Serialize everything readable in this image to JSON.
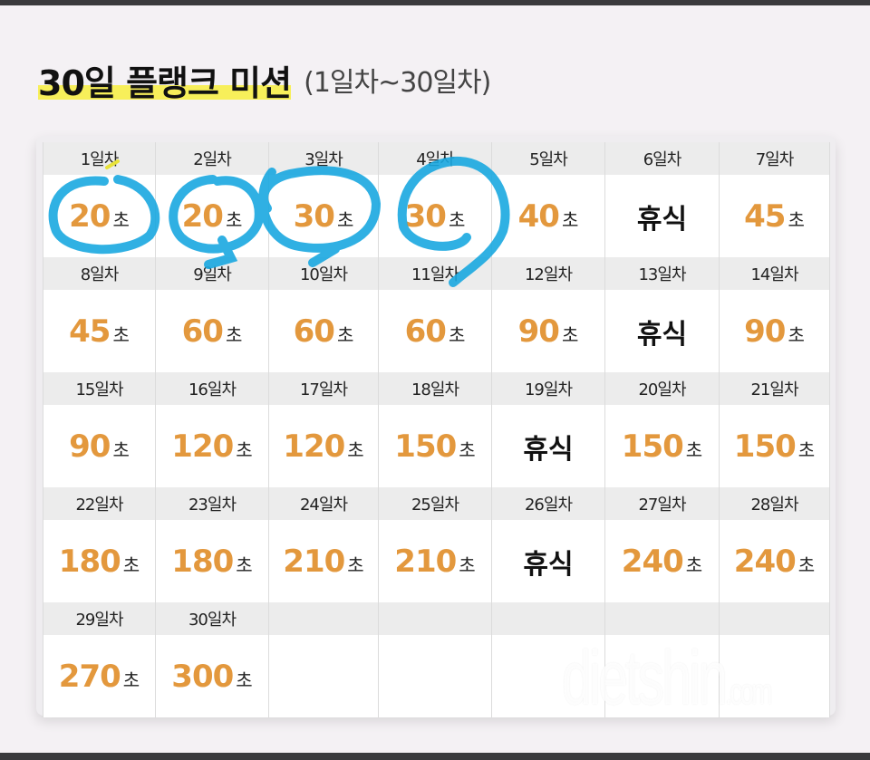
{
  "title": {
    "main": "30일 플랭크 미션",
    "sub": "(1일차~30일차)",
    "highlight_color": "#f7ef5a"
  },
  "colors": {
    "value": "#e3983d",
    "annotation": "#1aa8e0",
    "header_bg": "#ececec"
  },
  "unit": "초",
  "rest_label": "휴식",
  "days": [
    {
      "label": "1일차",
      "value": "20",
      "rest": false
    },
    {
      "label": "2일차",
      "value": "20",
      "rest": false
    },
    {
      "label": "3일차",
      "value": "30",
      "rest": false
    },
    {
      "label": "4일차",
      "value": "30",
      "rest": false
    },
    {
      "label": "5일차",
      "value": "40",
      "rest": false
    },
    {
      "label": "6일차",
      "value": "휴식",
      "rest": true
    },
    {
      "label": "7일차",
      "value": "45",
      "rest": false
    },
    {
      "label": "8일차",
      "value": "45",
      "rest": false
    },
    {
      "label": "9일차",
      "value": "60",
      "rest": false
    },
    {
      "label": "10일차",
      "value": "60",
      "rest": false
    },
    {
      "label": "11일차",
      "value": "60",
      "rest": false
    },
    {
      "label": "12일차",
      "value": "90",
      "rest": false
    },
    {
      "label": "13일차",
      "value": "휴식",
      "rest": true
    },
    {
      "label": "14일차",
      "value": "90",
      "rest": false
    },
    {
      "label": "15일차",
      "value": "90",
      "rest": false
    },
    {
      "label": "16일차",
      "value": "120",
      "rest": false
    },
    {
      "label": "17일차",
      "value": "120",
      "rest": false
    },
    {
      "label": "18일차",
      "value": "150",
      "rest": false
    },
    {
      "label": "19일차",
      "value": "휴식",
      "rest": true
    },
    {
      "label": "20일차",
      "value": "150",
      "rest": false
    },
    {
      "label": "21일차",
      "value": "150",
      "rest": false
    },
    {
      "label": "22일차",
      "value": "180",
      "rest": false
    },
    {
      "label": "23일차",
      "value": "180",
      "rest": false
    },
    {
      "label": "24일차",
      "value": "210",
      "rest": false
    },
    {
      "label": "25일차",
      "value": "210",
      "rest": false
    },
    {
      "label": "26일차",
      "value": "휴식",
      "rest": true
    },
    {
      "label": "27일차",
      "value": "240",
      "rest": false
    },
    {
      "label": "28일차",
      "value": "240",
      "rest": false
    },
    {
      "label": "29일차",
      "value": "270",
      "rest": false
    },
    {
      "label": "30일차",
      "value": "300",
      "rest": false
    }
  ],
  "annotations": {
    "circled_days": [
      "1일차",
      "2일차",
      "3일차",
      "4일차"
    ]
  },
  "watermark": {
    "main": "dietshin",
    "suffix": ".com"
  }
}
